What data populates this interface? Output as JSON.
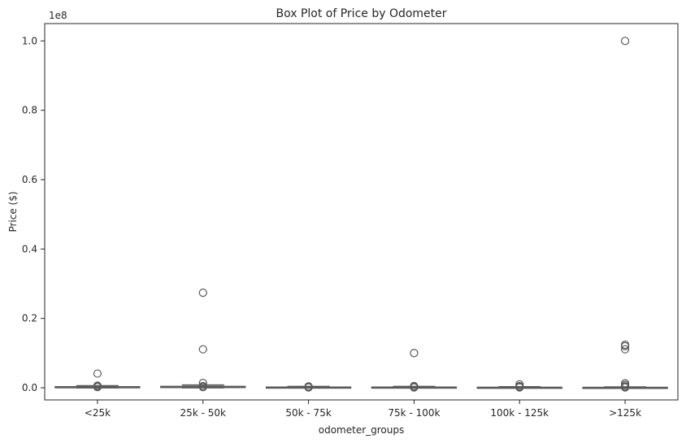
{
  "chart_data": {
    "type": "box",
    "title": "Box Plot of Price by Odometer",
    "xlabel": "odometer_groups",
    "ylabel": "Price ($)",
    "y_offset_label": "1e8",
    "ylim": [
      -0.035,
      1.05
    ],
    "y_unit_multiplier": 100000000,
    "yticks": [
      0.0,
      0.2,
      0.4,
      0.6,
      0.8,
      1.0
    ],
    "ytick_labels": [
      "0.0",
      "0.2",
      "0.4",
      "0.6",
      "0.8",
      "1.0"
    ],
    "grid": false,
    "categories": [
      "<25k",
      "25k - 50k",
      "50k - 75k",
      "75k - 100k",
      "100k - 125k",
      ">125k"
    ],
    "boxes": [
      {
        "category": "<25k",
        "q1": 0.0005,
        "median": 0.0015,
        "q3": 0.003,
        "whisker_low": 0.0,
        "whisker_high": 0.006,
        "outliers": [
          0.041,
          0.006,
          0.004,
          0.003,
          0.002
        ]
      },
      {
        "category": "25k - 50k",
        "q1": 0.0008,
        "median": 0.002,
        "q3": 0.004,
        "whisker_low": 0.0,
        "whisker_high": 0.008,
        "outliers": [
          0.274,
          0.111,
          0.014,
          0.005,
          0.003,
          0.002
        ]
      },
      {
        "category": "50k - 75k",
        "q1": 0.0003,
        "median": 0.001,
        "q3": 0.002,
        "whisker_low": 0.0,
        "whisker_high": 0.004,
        "outliers": [
          0.004,
          0.003,
          0.002,
          0.001
        ]
      },
      {
        "category": "75k - 100k",
        "q1": 0.0003,
        "median": 0.001,
        "q3": 0.002,
        "whisker_low": 0.0,
        "whisker_high": 0.004,
        "outliers": [
          0.1,
          0.005,
          0.003,
          0.002,
          0.001
        ]
      },
      {
        "category": "100k - 125k",
        "q1": 0.0002,
        "median": 0.0008,
        "q3": 0.0015,
        "whisker_low": 0.0,
        "whisker_high": 0.003,
        "outliers": [
          0.01,
          0.005,
          0.003,
          0.001
        ]
      },
      {
        "category": ">125k",
        "q1": 0.0002,
        "median": 0.0006,
        "q3": 0.0012,
        "whisker_low": 0.0,
        "whisker_high": 0.0025,
        "outliers": [
          1.0,
          0.124,
          0.12,
          0.111,
          0.013,
          0.008,
          0.004,
          0.002,
          0.001
        ]
      }
    ],
    "colors": {
      "box_fill": "#c8c8c8",
      "line": "#5a5a5a",
      "outlier": "#5a5a5a",
      "frame": "#262626",
      "background": "#ffffff"
    }
  }
}
